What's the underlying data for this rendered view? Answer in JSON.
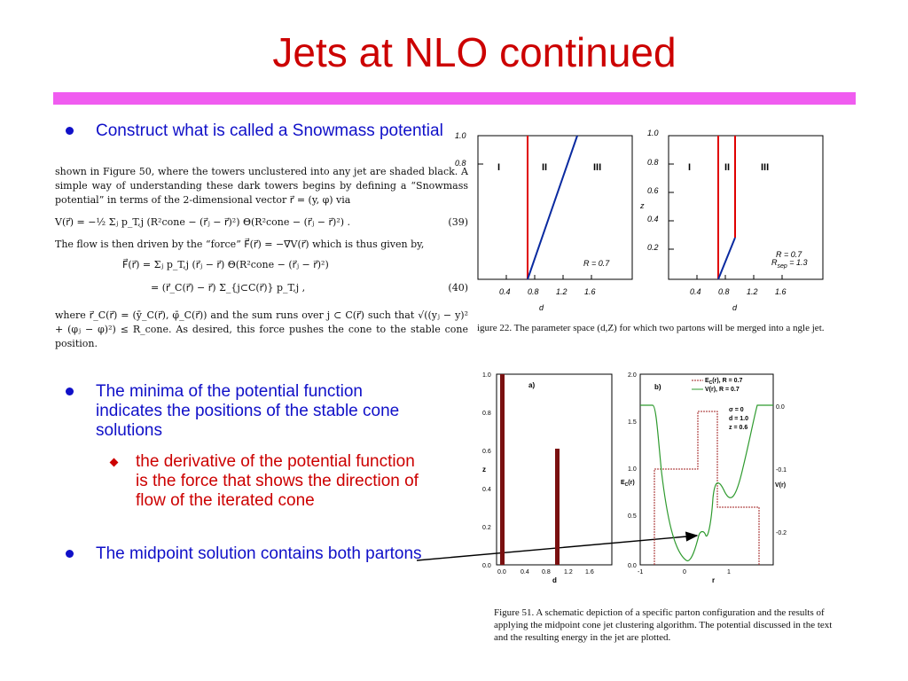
{
  "slide": {
    "title": "Jets at NLO continued",
    "bullets": [
      {
        "text": "Construct what is called a Snowmass potential"
      },
      {
        "text": "The minima of the potential function indicates the positions of the stable cone solutions"
      },
      {
        "text": "The midpoint solution contains both partons"
      }
    ],
    "sub_bullet": "the derivative of the potential function is the force that shows the direction of flow of the iterated cone"
  },
  "paper": {
    "para1": "shown in Figure 50, where the towers unclustered into any jet are shaded black. A simple way of understanding these dark towers begins by defining a “Snowmass potential” in terms of the 2-dimensional vector r⃗ = (y, φ) via",
    "eq39": "V(r⃗) = −½ Σⱼ p_T,j (R²cone − (r⃗ⱼ − r⃗)²) Θ(R²cone − (r⃗ⱼ − r⃗)²) .",
    "eq39_num": "(39)",
    "para2": "The flow is then driven by the “force” F⃗(r⃗) = −∇⃗V(r⃗) which is thus given by,",
    "eq40a": "F⃗(r⃗) = Σⱼ p_T,j (r⃗ⱼ − r⃗) Θ(R²cone − (r⃗ⱼ − r⃗)²)",
    "eq40b": "= (r⃗_C(r⃗) − r⃗) Σ_{j⊂C(r⃗)} p_T,j ,",
    "eq40_num": "(40)",
    "para3": "where r⃗_C(r⃗) = (ȳ_C(r⃗), φ̄_C(r⃗)) and the sum runs over j ⊂ C(r⃗) such that √((yⱼ − y)² + (φⱼ − φ)²) ≤ R_cone. As desired, this force pushes the cone to the stable cone position."
  },
  "fig22": {
    "caption": "igure 22. The parameter space (d,Z) for which two partons will be merged into a ngle jet.",
    "left": {
      "yticks": [
        "1.0",
        "0.8"
      ],
      "xticks": [
        "0.4",
        "0.8",
        "1.2",
        "1.6"
      ],
      "xlabel": "d",
      "regions": [
        "I",
        "II",
        "III"
      ],
      "label": "R = 0.7"
    },
    "right": {
      "yticks": [
        "1.0",
        "0.8",
        "0.6",
        "0.4",
        "0.2"
      ],
      "ylabel": "z",
      "xticks": [
        "0.4",
        "0.8",
        "1.2",
        "1.6"
      ],
      "xlabel": "d",
      "regions": [
        "I",
        "II",
        "III"
      ],
      "label1": "R = 0.7",
      "label2": "R",
      "label2sub": "sep",
      "label2val": " = 1.3"
    }
  },
  "fig51": {
    "caption": "Figure 51. A schematic depiction of a specific parton configuration and the results of applying the midpoint cone jet clustering algorithm. The potential discussed in the text and the resulting energy in the jet are plotted.",
    "a": {
      "tag": "a)",
      "yticks": [
        "1.0",
        "0.8",
        "0.6",
        "0.4",
        "0.2",
        "0.0"
      ],
      "ylabel": "z",
      "xticks": [
        "0.0",
        "0.4",
        "0.8",
        "1.2",
        "1.6"
      ],
      "xlabel": "d"
    },
    "b": {
      "tag": "b)",
      "legend1": "E",
      "legend1sub": "C",
      "legend1rest": "(r), R = 0.7",
      "legend2": "V(r), R = 0.7",
      "params": [
        "σ = 0",
        "d = 1.0",
        "z = 0.6"
      ],
      "yticks_left": [
        "2.0",
        "1.5",
        "1.0",
        "0.5",
        "0.0"
      ],
      "ylabel_left": "E",
      "ylabel_left_sub": "C",
      "ylabel_left_rest": "(r)",
      "yticks_right": [
        "0.0",
        "-0.1",
        "-0.2"
      ],
      "ylabel_right": "V(r)",
      "xticks": [
        "-1",
        "0",
        "1"
      ],
      "xlabel": "r"
    }
  },
  "colors": {
    "title": "#cc0000",
    "bullet": "#1010c8",
    "band": "#f05cf0",
    "bar": "#7a1010",
    "green": "#2e9a2e"
  }
}
